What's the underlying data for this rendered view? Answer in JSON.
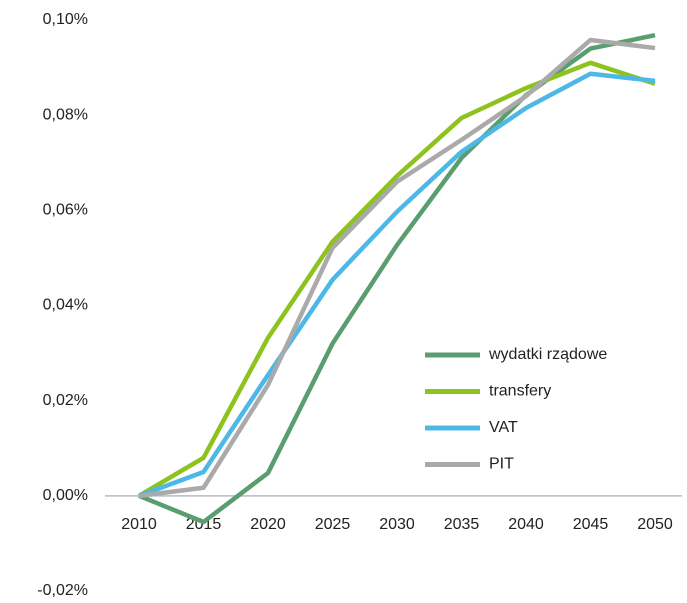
{
  "chart_data": {
    "type": "line",
    "x": [
      2010,
      2015,
      2020,
      2025,
      2030,
      2035,
      2040,
      2045,
      2050
    ],
    "xlim": [
      2010,
      2050
    ],
    "xticks": [
      2010,
      2015,
      2020,
      2025,
      2030,
      2035,
      2040,
      2045,
      2050
    ],
    "ylim": [
      -0.02,
      0.1
    ],
    "yticks": [
      {
        "value": -0.02,
        "label": "-0,02%"
      },
      {
        "value": 0,
        "label": "0,00%"
      },
      {
        "value": 0.02,
        "label": "0,02%"
      },
      {
        "value": 0.04,
        "label": "0,04%"
      },
      {
        "value": 0.06,
        "label": "0,06%"
      },
      {
        "value": 0.08,
        "label": "0,08%"
      },
      {
        "value": 0.1,
        "label": "0,10%"
      }
    ],
    "grid": false,
    "legend": "lower right",
    "series": [
      {
        "name": "wydatki rządowe",
        "color": "#5a9e6f",
        "values": [
          0,
          -0.0055,
          0.0048,
          0.032,
          0.0527,
          0.071,
          0.0842,
          0.094,
          0.0968
        ]
      },
      {
        "name": "transfery",
        "color": "#8dc21f",
        "values": [
          0,
          0.008,
          0.0332,
          0.0534,
          0.0672,
          0.0794,
          0.0857,
          0.091,
          0.0866
        ]
      },
      {
        "name": "VAT",
        "color": "#4db8e8",
        "values": [
          0,
          0.005,
          0.0254,
          0.0454,
          0.0597,
          0.0723,
          0.0815,
          0.0887,
          0.0872
        ]
      },
      {
        "name": "PIT",
        "color": "#aaaaaa",
        "values": [
          0,
          0.0017,
          0.0233,
          0.0521,
          0.066,
          0.0748,
          0.084,
          0.0958,
          0.0941
        ]
      }
    ]
  }
}
